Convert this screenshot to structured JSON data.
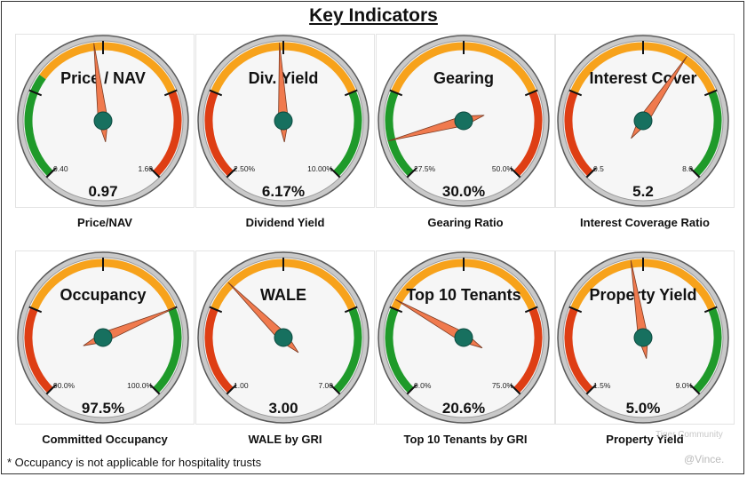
{
  "title": "Key Indicators",
  "footnote": "* Occupancy is not applicable for hospitality trusts",
  "watermark": {
    "brand": "Tiger Community",
    "handle": "@Vince."
  },
  "colors": {
    "green": "#1f9a2a",
    "orange": "#f7a21b",
    "red": "#de3e14",
    "needle": "#f07a4e",
    "hub": "#17705f",
    "ring": "#c9c9c9",
    "face": "#f6f6f6"
  },
  "chart_data": [
    {
      "type": "gauge",
      "title": "Price / NAV",
      "caption": "Price/NAV",
      "min": 0.4,
      "max": 1.6,
      "value": 0.97,
      "min_label": "0.40",
      "max_label": "1.60",
      "value_label": "0.97",
      "bands": [
        {
          "from": 0,
          "to": 0.3,
          "color": "green"
        },
        {
          "from": 0.3,
          "to": 0.75,
          "color": "orange"
        },
        {
          "from": 0.75,
          "to": 1,
          "color": "red"
        }
      ]
    },
    {
      "type": "gauge",
      "title": "Div. Yield",
      "caption": "Dividend Yield",
      "min": 2.5,
      "max": 10.0,
      "value": 6.17,
      "min_label": "2.50%",
      "max_label": "10.00%",
      "value_label": "6.17%",
      "bands": [
        {
          "from": 0,
          "to": 0.25,
          "color": "red"
        },
        {
          "from": 0.25,
          "to": 0.75,
          "color": "orange"
        },
        {
          "from": 0.75,
          "to": 1,
          "color": "green"
        }
      ]
    },
    {
      "type": "gauge",
      "title": "Gearing",
      "caption": "Gearing Ratio",
      "min": 27.5,
      "max": 50.0,
      "value": 30.0,
      "min_label": "27.5%",
      "max_label": "50.0%",
      "value_label": "30.0%",
      "bands": [
        {
          "from": 0,
          "to": 0.25,
          "color": "green"
        },
        {
          "from": 0.25,
          "to": 0.75,
          "color": "orange"
        },
        {
          "from": 0.75,
          "to": 1,
          "color": "red"
        }
      ]
    },
    {
      "type": "gauge",
      "title": "Interest Cover",
      "caption": "Interest Coverage Ratio",
      "min": 0.5,
      "max": 8.0,
      "value": 5.2,
      "min_label": "0.5",
      "max_label": "8.0",
      "value_label": "5.2",
      "bands": [
        {
          "from": 0,
          "to": 0.25,
          "color": "red"
        },
        {
          "from": 0.25,
          "to": 0.75,
          "color": "orange"
        },
        {
          "from": 0.75,
          "to": 1,
          "color": "green"
        }
      ]
    },
    {
      "type": "gauge",
      "title": "Occupancy",
      "caption": "Committed Occupancy",
      "min": 90.0,
      "max": 100.0,
      "value": 97.5,
      "min_label": "90.0%",
      "max_label": "100.0%",
      "value_label": "97.5%",
      "bands": [
        {
          "from": 0,
          "to": 0.25,
          "color": "red"
        },
        {
          "from": 0.25,
          "to": 0.75,
          "color": "orange"
        },
        {
          "from": 0.75,
          "to": 1,
          "color": "green"
        }
      ]
    },
    {
      "type": "gauge",
      "title": "WALE",
      "caption": "WALE by GRI",
      "min": 1.0,
      "max": 7.0,
      "value": 3.0,
      "min_label": "1.00",
      "max_label": "7.00",
      "value_label": "3.00",
      "bands": [
        {
          "from": 0,
          "to": 0.25,
          "color": "red"
        },
        {
          "from": 0.25,
          "to": 0.75,
          "color": "orange"
        },
        {
          "from": 0.75,
          "to": 1,
          "color": "green"
        }
      ]
    },
    {
      "type": "gauge",
      "title": "Top 10 Tenants",
      "caption": "Top 10 Tenants by GRI",
      "min": 0.0,
      "max": 75.0,
      "value": 20.6,
      "min_label": "0.0%",
      "max_label": "75.0%",
      "value_label": "20.6%",
      "bands": [
        {
          "from": 0,
          "to": 0.25,
          "color": "green"
        },
        {
          "from": 0.25,
          "to": 0.75,
          "color": "orange"
        },
        {
          "from": 0.75,
          "to": 1,
          "color": "red"
        }
      ]
    },
    {
      "type": "gauge",
      "title": "Property Yield",
      "caption": "Property Yield",
      "min": 1.5,
      "max": 9.0,
      "value": 5.0,
      "min_label": "1.5%",
      "max_label": "9.0%",
      "value_label": "5.0%",
      "bands": [
        {
          "from": 0,
          "to": 0.25,
          "color": "red"
        },
        {
          "from": 0.25,
          "to": 0.75,
          "color": "orange"
        },
        {
          "from": 0.75,
          "to": 1,
          "color": "green"
        }
      ]
    }
  ]
}
